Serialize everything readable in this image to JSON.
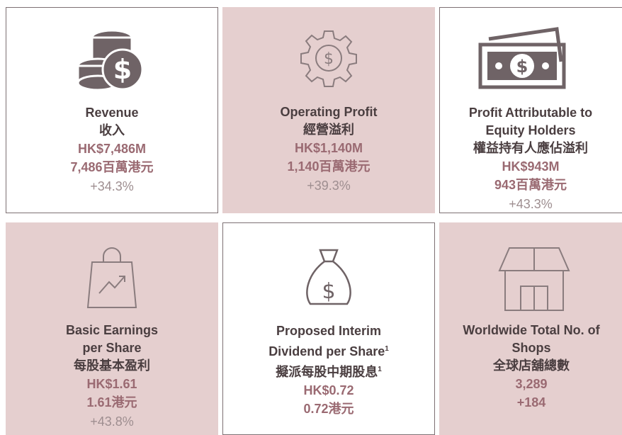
{
  "tiles": [
    {
      "title": [
        "Revenue"
      ],
      "title_zh": "收入",
      "values": [
        "HK$7,486M",
        "7,486百萬港元"
      ],
      "change": "+34.3%"
    },
    {
      "title": [
        "Operating Profit"
      ],
      "title_zh": "經營溢利",
      "values": [
        "HK$1,140M",
        "1,140百萬港元"
      ],
      "change": "+39.3%"
    },
    {
      "title": [
        "Profit Attributable to",
        "Equity Holders"
      ],
      "title_zh": "權益持有人應佔溢利",
      "values": [
        "HK$943M",
        "943百萬港元"
      ],
      "change": "+43.3%"
    },
    {
      "title": [
        "Basic Earnings",
        "per Share"
      ],
      "title_zh": "每股基本盈利",
      "values": [
        "HK$1.61",
        "1.61港元"
      ],
      "change": "+43.8%"
    },
    {
      "title": [
        "Proposed Interim",
        "Dividend per Share"
      ],
      "title_zh": "擬派每股中期股息",
      "note_mark": "1",
      "values": [
        "HK$0.72",
        "0.72港元"
      ]
    },
    {
      "title": [
        "Worldwide Total No. of",
        "Shops"
      ],
      "title_zh": "全球店舖總數",
      "values": [
        "3,289",
        "+184"
      ]
    }
  ]
}
